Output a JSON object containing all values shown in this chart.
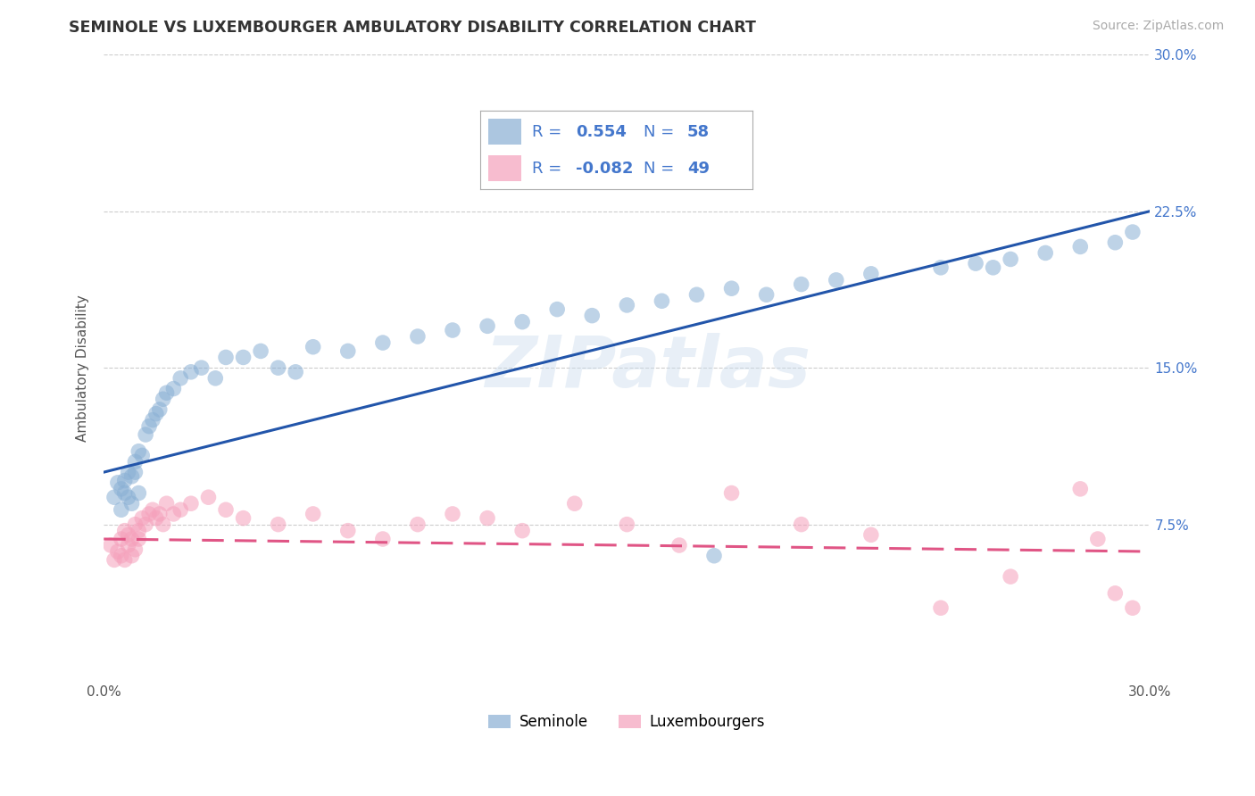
{
  "title": "SEMINOLE VS LUXEMBOURGER AMBULATORY DISABILITY CORRELATION CHART",
  "source": "Source: ZipAtlas.com",
  "ylabel": "Ambulatory Disability",
  "xlim": [
    0.0,
    0.3
  ],
  "ylim": [
    0.0,
    0.3
  ],
  "seminole_color": "#89afd4",
  "luxembourger_color": "#f5a0bb",
  "seminole_line_color": "#2255aa",
  "luxembourger_line_color": "#e05585",
  "legend_text_color": "#4477cc",
  "watermark": "ZIPatlas",
  "background_color": "#ffffff",
  "grid_color": "#cccccc",
  "seminole_x": [
    0.003,
    0.004,
    0.005,
    0.005,
    0.006,
    0.006,
    0.007,
    0.007,
    0.008,
    0.008,
    0.009,
    0.009,
    0.01,
    0.01,
    0.011,
    0.012,
    0.013,
    0.014,
    0.015,
    0.016,
    0.017,
    0.018,
    0.02,
    0.022,
    0.025,
    0.028,
    0.032,
    0.035,
    0.04,
    0.045,
    0.05,
    0.055,
    0.06,
    0.07,
    0.08,
    0.09,
    0.1,
    0.11,
    0.12,
    0.13,
    0.14,
    0.15,
    0.16,
    0.17,
    0.18,
    0.19,
    0.2,
    0.21,
    0.22,
    0.24,
    0.25,
    0.26,
    0.27,
    0.28,
    0.29,
    0.295,
    0.255,
    0.175
  ],
  "seminole_y": [
    0.088,
    0.095,
    0.082,
    0.092,
    0.096,
    0.09,
    0.088,
    0.1,
    0.085,
    0.098,
    0.1,
    0.105,
    0.09,
    0.11,
    0.108,
    0.118,
    0.122,
    0.125,
    0.128,
    0.13,
    0.135,
    0.138,
    0.14,
    0.145,
    0.148,
    0.15,
    0.145,
    0.155,
    0.155,
    0.158,
    0.15,
    0.148,
    0.16,
    0.158,
    0.162,
    0.165,
    0.168,
    0.17,
    0.172,
    0.178,
    0.175,
    0.18,
    0.182,
    0.185,
    0.188,
    0.185,
    0.19,
    0.192,
    0.195,
    0.198,
    0.2,
    0.202,
    0.205,
    0.208,
    0.21,
    0.215,
    0.198,
    0.06
  ],
  "luxembourger_x": [
    0.002,
    0.003,
    0.004,
    0.005,
    0.005,
    0.006,
    0.006,
    0.007,
    0.007,
    0.008,
    0.008,
    0.009,
    0.009,
    0.01,
    0.01,
    0.011,
    0.012,
    0.013,
    0.014,
    0.015,
    0.016,
    0.017,
    0.018,
    0.02,
    0.022,
    0.025,
    0.03,
    0.035,
    0.04,
    0.05,
    0.06,
    0.07,
    0.08,
    0.09,
    0.1,
    0.11,
    0.12,
    0.135,
    0.15,
    0.165,
    0.18,
    0.2,
    0.22,
    0.24,
    0.26,
    0.28,
    0.285,
    0.29,
    0.295
  ],
  "luxembourger_y": [
    0.065,
    0.058,
    0.062,
    0.06,
    0.068,
    0.072,
    0.058,
    0.065,
    0.07,
    0.06,
    0.068,
    0.063,
    0.075,
    0.068,
    0.072,
    0.078,
    0.075,
    0.08,
    0.082,
    0.078,
    0.08,
    0.075,
    0.085,
    0.08,
    0.082,
    0.085,
    0.088,
    0.082,
    0.078,
    0.075,
    0.08,
    0.072,
    0.068,
    0.075,
    0.08,
    0.078,
    0.072,
    0.085,
    0.075,
    0.065,
    0.09,
    0.075,
    0.07,
    0.035,
    0.05,
    0.092,
    0.068,
    0.042,
    0.035
  ]
}
